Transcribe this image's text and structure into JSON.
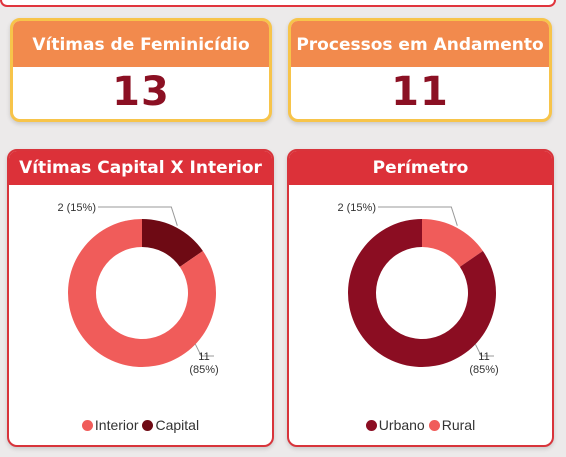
{
  "kpis": [
    {
      "title": "Vítimas de Feminicídio",
      "value": "13"
    },
    {
      "title": "Processos em Andamento",
      "value": "11"
    }
  ],
  "chart_data": [
    {
      "type": "pie",
      "title": "Vítimas Capital X Interior",
      "legend_position": "bottom",
      "series": [
        {
          "name": "Interior",
          "value": 11,
          "label_value": "11",
          "label_pct": "(85%)",
          "color": "#f05c5a"
        },
        {
          "name": "Capital",
          "value": 2,
          "label_value": "2",
          "label_pct": "(15%)",
          "color": "#6e0a14"
        }
      ]
    },
    {
      "type": "pie",
      "title": "Perímetro",
      "legend_position": "bottom",
      "series": [
        {
          "name": "Urbano",
          "value": 11,
          "label_value": "11",
          "label_pct": "(85%)",
          "color": "#8b0d22"
        },
        {
          "name": "Rural",
          "value": 2,
          "label_value": "2",
          "label_pct": "(15%)",
          "color": "#f05c5a"
        }
      ]
    }
  ]
}
